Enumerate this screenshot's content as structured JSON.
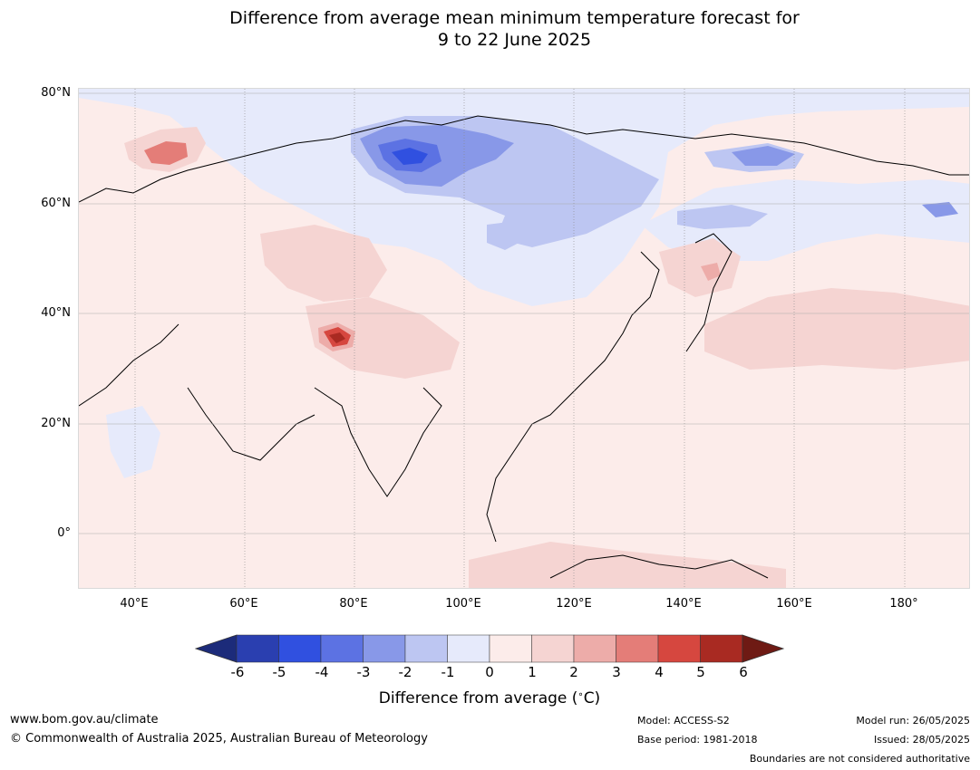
{
  "title": {
    "line1": "Difference from average mean minimum temperature forecast for",
    "line2": "9 to 22 June 2025"
  },
  "map": {
    "lat_labels": [
      "80°N",
      "60°N",
      "40°N",
      "20°N",
      "0°"
    ],
    "lon_labels": [
      "40°E",
      "60°E",
      "80°E",
      "100°E",
      "120°E",
      "140°E",
      "160°E",
      "180°"
    ]
  },
  "colorbar": {
    "ticks": [
      "-6",
      "-5",
      "-4",
      "-3",
      "-2",
      "-1",
      "0",
      "1",
      "2",
      "3",
      "4",
      "5",
      "6"
    ],
    "colors": [
      "#1c2b7a",
      "#2a3fb0",
      "#3050e0",
      "#5c72e3",
      "#8898e8",
      "#bdc6f2",
      "#e6eafb",
      "#fcecea",
      "#f5d4d2",
      "#edaca9",
      "#e47d78",
      "#d6473f",
      "#a92a22",
      "#6e1a14"
    ],
    "label": "Difference from average (°C)",
    "label_text": "Difference from average (",
    "label_unit": "C)"
  },
  "footer": {
    "url": "www.bom.gov.au/climate",
    "copyright": "© Commonwealth of Australia 2025, Australian Bureau of Meteorology",
    "model": "Model: ACCESS-S2",
    "base_period": "Base period: 1981-2018",
    "model_run": "Model run: 26/05/2025",
    "issued": "Issued: 28/05/2025",
    "disclaimer": "Boundaries are not considered authoritative"
  }
}
